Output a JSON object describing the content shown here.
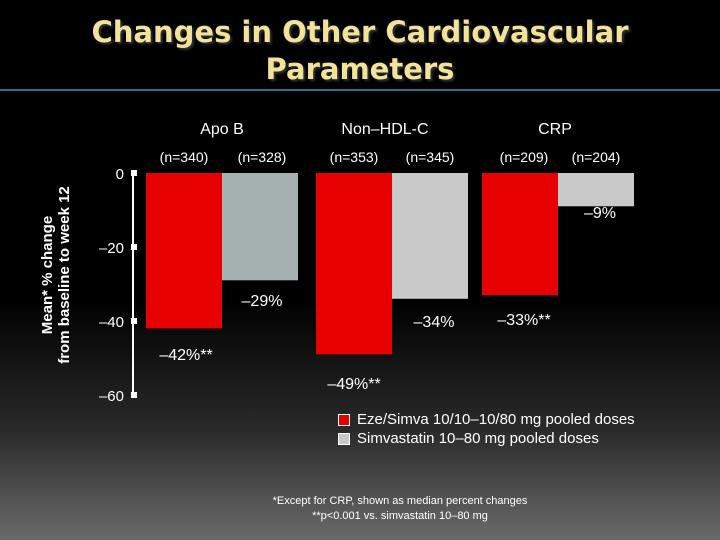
{
  "slide": {
    "title_line1": "Changes in Other Cardiovascular",
    "title_line2": "Parameters"
  },
  "colors": {
    "eze": "#e60000",
    "simva": "#a6b2b2",
    "simva_crp": "#c9c9c9"
  },
  "legend": [
    {
      "label": "Eze/Simva 10/10–10/80 mg pooled doses",
      "color": "#e60000"
    },
    {
      "label": "Simvastatin 10–80 mg pooled doses",
      "color": "#c9c9c9"
    }
  ],
  "footnotes": {
    "line1": "*Except for CRP, shown as median percent changes",
    "line2": "**p<0.001 vs. simvastatin 10–80 mg"
  },
  "chart_data": {
    "type": "bar",
    "ylabel_line1": "Mean* % change",
    "ylabel_line2": "from baseline to week 12",
    "ylim": [
      -60,
      0
    ],
    "yticks": [
      {
        "value": 0,
        "label": "0"
      },
      {
        "value": -20,
        "label": "–20"
      },
      {
        "value": -40,
        "label": "–40"
      },
      {
        "value": -60,
        "label": "–60"
      }
    ],
    "categories": [
      "Apo B",
      "Non–HDL-C",
      "CRP"
    ],
    "groups": [
      {
        "category": "Apo B",
        "n_labels": [
          "(n=340)",
          "(n=328)"
        ],
        "values": [
          -42,
          -29
        ],
        "value_labels": [
          "–42%**",
          "–29%"
        ]
      },
      {
        "category": "Non–HDL-C",
        "n_labels": [
          "(n=353)",
          "(n=345)"
        ],
        "values": [
          -49,
          -34
        ],
        "value_labels": [
          "–49%**",
          "–34%"
        ]
      },
      {
        "category": "CRP",
        "n_labels": [
          "(n=209)",
          "(n=204)"
        ],
        "values": [
          -33,
          -9
        ],
        "value_labels": [
          "–33%**",
          "–9%"
        ]
      }
    ],
    "series": [
      {
        "name": "Eze/Simva 10/10–10/80 mg pooled doses",
        "values": [
          -42,
          -49,
          -33
        ]
      },
      {
        "name": "Simvastatin 10–80 mg pooled doses",
        "values": [
          -29,
          -34,
          -9
        ]
      }
    ],
    "grid": false,
    "legend_position": "bottom-right"
  }
}
